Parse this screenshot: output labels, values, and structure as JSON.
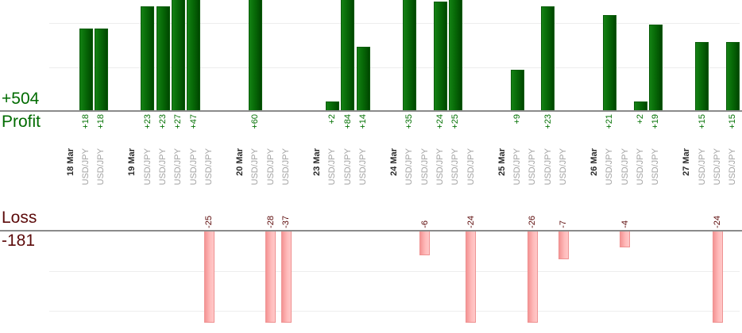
{
  "chart_data": {
    "type": "bar",
    "kind": "trade-profit-loss-by-day",
    "grid": true,
    "value_labels_rotated": true,
    "profit_section": {
      "total_label": "+504",
      "axis_label": "Profit",
      "text_color": "#006b00",
      "bar_color": "#0a6b0a",
      "visible_ylim": [
        0,
        25
      ],
      "gridline_step": 10,
      "note_bars_clipped": "bars taller than visible area are cut at top edge"
    },
    "loss_section": {
      "total_label": "-181",
      "axis_label": "Loss",
      "text_color": "#5c0a0a",
      "bar_color": "#ffb3b3",
      "visible_ylim": [
        0,
        -23
      ],
      "gridline_step": 10,
      "note_bars_clipped": "bars longer than visible area are cut at bottom edge"
    },
    "groups": [
      {
        "date": "18 Mar",
        "trades": [
          {
            "symbol": "USD/JPY",
            "value": 18,
            "label": "+18"
          },
          {
            "symbol": "USD/JPY",
            "value": 18,
            "label": "+18"
          }
        ]
      },
      {
        "date": "19 Mar",
        "trades": [
          {
            "symbol": "USD/JPY",
            "value": 23,
            "label": "+23"
          },
          {
            "symbol": "USD/JPY",
            "value": 23,
            "label": "+23"
          },
          {
            "symbol": "USD/JPY",
            "value": 27,
            "label": "+27"
          },
          {
            "symbol": "USD/JPY",
            "value": 47,
            "label": "+47"
          },
          {
            "symbol": "USD/JPY",
            "value": -25,
            "label": "-25"
          }
        ]
      },
      {
        "date": "20 Mar",
        "trades": [
          {
            "symbol": "USD/JPY",
            "value": 60,
            "label": "+60"
          },
          {
            "symbol": "USD/JPY",
            "value": -28,
            "label": "-28"
          },
          {
            "symbol": "USD/JPY",
            "value": -37,
            "label": "-37"
          }
        ]
      },
      {
        "date": "23 Mar",
        "trades": [
          {
            "symbol": "USD/JPY",
            "value": 2,
            "label": "+2"
          },
          {
            "symbol": "USD/JPY",
            "value": 84,
            "label": "+84"
          },
          {
            "symbol": "USD/JPY",
            "value": 14,
            "label": "+14"
          }
        ]
      },
      {
        "date": "24 Mar",
        "trades": [
          {
            "symbol": "USD/JPY",
            "value": 35,
            "label": "+35"
          },
          {
            "symbol": "USD/JPY",
            "value": -6,
            "label": "-6"
          },
          {
            "symbol": "USD/JPY",
            "value": 24,
            "label": "+24"
          },
          {
            "symbol": "USD/JPY",
            "value": 25,
            "label": "+25"
          },
          {
            "symbol": "USD/JPY",
            "value": -24,
            "label": "-24"
          }
        ]
      },
      {
        "date": "25 Mar",
        "trades": [
          {
            "symbol": "USD/JPY",
            "value": 9,
            "label": "+9"
          },
          {
            "symbol": "USD/JPY",
            "value": -26,
            "label": "-26"
          },
          {
            "symbol": "USD/JPY",
            "value": 23,
            "label": "+23"
          },
          {
            "symbol": "USD/JPY",
            "value": -7,
            "label": "-7"
          }
        ]
      },
      {
        "date": "26 Mar",
        "trades": [
          {
            "symbol": "USD/JPY",
            "value": 21,
            "label": "+21"
          },
          {
            "symbol": "USD/JPY",
            "value": -4,
            "label": "-4"
          },
          {
            "symbol": "USD/JPY",
            "value": 2,
            "label": "+2"
          },
          {
            "symbol": "USD/JPY",
            "value": 19,
            "label": "+19"
          }
        ]
      },
      {
        "date": "27 Mar",
        "trades": [
          {
            "symbol": "USD/JPY",
            "value": 15,
            "label": "+15"
          },
          {
            "symbol": "USD/JPY",
            "value": -24,
            "label": "-24"
          },
          {
            "symbol": "USD/JPY",
            "value": 15,
            "label": "+15"
          }
        ]
      }
    ]
  }
}
